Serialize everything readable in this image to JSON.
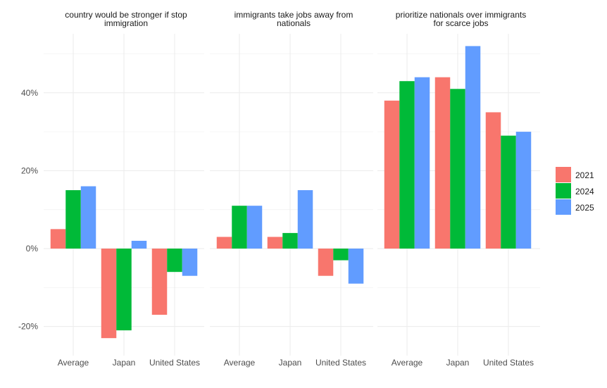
{
  "chart_data": {
    "type": "bar",
    "facets": [
      {
        "title_lines": [
          "country would be stronger if stop",
          "immigration"
        ],
        "categories": [
          "Average",
          "Japan",
          "United States"
        ],
        "series": [
          {
            "name": "2021",
            "values": [
              5,
              -23,
              -17
            ]
          },
          {
            "name": "2024",
            "values": [
              15,
              -21,
              -6
            ]
          },
          {
            "name": "2025",
            "values": [
              16,
              2,
              -7
            ]
          }
        ]
      },
      {
        "title_lines": [
          "immigrants take jobs away from",
          "nationals"
        ],
        "categories": [
          "Average",
          "Japan",
          "United States"
        ],
        "series": [
          {
            "name": "2021",
            "values": [
              3,
              3,
              -7
            ]
          },
          {
            "name": "2024",
            "values": [
              11,
              4,
              -3
            ]
          },
          {
            "name": "2025",
            "values": [
              11,
              15,
              -9
            ]
          }
        ]
      },
      {
        "title_lines": [
          "prioritize nationals over immigrants",
          "for scarce jobs"
        ],
        "categories": [
          "Average",
          "Japan",
          "United States"
        ],
        "series": [
          {
            "name": "2021",
            "values": [
              38,
              44,
              35
            ]
          },
          {
            "name": "2024",
            "values": [
              43,
              41,
              29
            ]
          },
          {
            "name": "2025",
            "values": [
              44,
              52,
              30
            ]
          }
        ]
      }
    ],
    "y_ticks": [
      -20,
      0,
      20,
      40
    ],
    "y_tick_labels": [
      "-20%",
      "0%",
      "20%",
      "40%"
    ],
    "ylim": [
      -27,
      54
    ],
    "legend": {
      "position": "right",
      "entries": [
        "2021",
        "2024",
        "2025"
      ]
    },
    "colors": {
      "2021": "#F8766D",
      "2024": "#00BA38",
      "2025": "#619CFF"
    },
    "grid": true
  }
}
